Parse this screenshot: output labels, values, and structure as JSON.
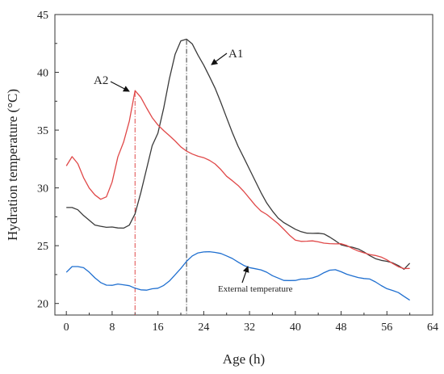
{
  "chart_data": {
    "type": "line",
    "xlabel": "Age (h)",
    "ylabel": "Hydration temperature (°C)",
    "xlim": [
      -2,
      64
    ],
    "ylim": [
      19,
      45
    ],
    "xticks": [
      "0",
      "8",
      "16",
      "24",
      "32",
      "40",
      "48",
      "56",
      "64"
    ],
    "yticks": [
      "20",
      "25",
      "30",
      "35",
      "40",
      "45"
    ],
    "grid": false,
    "series": [
      {
        "color": "#3a3a3a",
        "x": [
          0,
          1,
          2,
          3,
          4,
          5,
          6,
          7,
          8,
          9,
          10,
          11,
          12,
          13,
          14,
          15,
          16,
          17,
          18,
          19,
          20,
          21,
          22,
          23,
          24,
          25,
          26,
          27,
          28,
          29,
          30,
          31,
          32,
          33,
          34,
          35,
          36,
          37,
          38,
          39,
          40,
          41,
          42,
          43,
          44,
          45,
          46,
          47,
          48,
          49,
          50,
          51,
          52,
          53,
          54,
          55,
          56,
          57,
          58,
          59,
          60
        ],
        "y": [
          28.3,
          28.2,
          28.0,
          27.6,
          27.3,
          26.9,
          26.7,
          26.5,
          26.5,
          26.5,
          26.6,
          26.9,
          27.8,
          29.5,
          31.5,
          33.6,
          34.8,
          37.0,
          39.5,
          41.5,
          42.6,
          42.8,
          42.5,
          41.6,
          40.7,
          39.6,
          38.5,
          37.3,
          36.1,
          34.9,
          33.7,
          32.6,
          31.5,
          30.5,
          29.6,
          28.8,
          28.1,
          27.4,
          26.9,
          26.6,
          26.4,
          26.3,
          26.2,
          26.1,
          26.0,
          25.9,
          25.7,
          25.5,
          25.2,
          25.0,
          24.8,
          24.6,
          24.4,
          24.2,
          24.0,
          23.8,
          23.6,
          23.4,
          23.2,
          23.0,
          23.6
        ]
      },
      {
        "color": "#e04848",
        "x": [
          0,
          1,
          2,
          3,
          4,
          5,
          6,
          7,
          8,
          9,
          10,
          11,
          12,
          13,
          14,
          15,
          16,
          17,
          18,
          19,
          20,
          21,
          22,
          23,
          24,
          25,
          26,
          27,
          28,
          29,
          30,
          31,
          32,
          33,
          34,
          35,
          36,
          37,
          38,
          39,
          40,
          41,
          42,
          43,
          44,
          45,
          46,
          47,
          48,
          49,
          50,
          51,
          52,
          53,
          54,
          55,
          56,
          57,
          58,
          59,
          60
        ],
        "y": [
          31.8,
          32.7,
          32.2,
          31.0,
          30.0,
          29.3,
          28.9,
          29.2,
          30.6,
          32.8,
          34.0,
          35.7,
          38.3,
          37.8,
          37.0,
          36.2,
          35.5,
          34.9,
          34.4,
          34.0,
          33.6,
          33.3,
          33.0,
          32.7,
          32.5,
          32.3,
          32.1,
          31.7,
          31.1,
          30.6,
          30.1,
          29.6,
          29.1,
          28.6,
          28.1,
          27.7,
          27.2,
          26.8,
          26.4,
          26.0,
          25.6,
          25.4,
          25.3,
          25.3,
          25.3,
          25.3,
          25.3,
          25.2,
          25.1,
          24.9,
          24.7,
          24.6,
          24.5,
          24.3,
          24.1,
          23.9,
          23.7,
          23.5,
          23.3,
          23.1,
          23.0
        ]
      },
      {
        "color": "#1f6fd0",
        "x": [
          0,
          1,
          2,
          3,
          4,
          5,
          6,
          7,
          8,
          9,
          10,
          11,
          12,
          13,
          14,
          15,
          16,
          17,
          18,
          19,
          20,
          21,
          22,
          23,
          24,
          25,
          26,
          27,
          28,
          29,
          30,
          31,
          32,
          33,
          34,
          35,
          36,
          37,
          38,
          39,
          40,
          41,
          42,
          43,
          44,
          45,
          46,
          47,
          48,
          49,
          50,
          51,
          52,
          53,
          54,
          55,
          56,
          57,
          58,
          59,
          60
        ],
        "y": [
          22.8,
          23.3,
          23.2,
          23.0,
          22.6,
          22.2,
          21.9,
          21.7,
          21.6,
          21.6,
          21.5,
          21.5,
          21.4,
          21.3,
          21.2,
          21.2,
          21.2,
          21.5,
          22.0,
          22.6,
          23.1,
          23.6,
          24.0,
          24.3,
          24.5,
          24.6,
          24.5,
          24.3,
          24.0,
          23.8,
          23.6,
          23.4,
          23.2,
          23.0,
          22.8,
          22.6,
          22.4,
          22.3,
          22.1,
          22.0,
          21.9,
          22.0,
          22.1,
          22.3,
          22.5,
          22.7,
          22.8,
          22.8,
          22.7,
          22.6,
          22.5,
          22.3,
          22.1,
          22.0,
          21.8,
          21.6,
          21.4,
          21.2,
          20.9,
          20.5,
          20.2
        ]
      }
    ],
    "annotations": [
      {
        "text": "A1",
        "x": 21,
        "y": 42.8,
        "color": "#3a3a3a"
      },
      {
        "text": "A2",
        "x": 12,
        "y": 38.3,
        "color": "#e04848"
      },
      {
        "text": "External temperature"
      }
    ]
  }
}
